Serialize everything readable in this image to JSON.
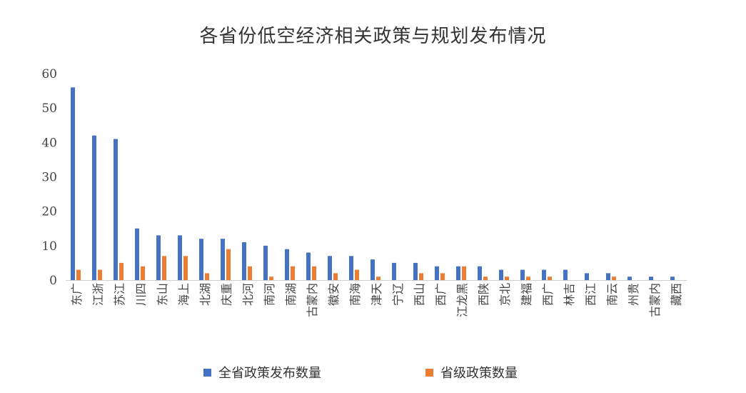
{
  "chart_data": {
    "type": "bar",
    "title": "各省份低空经济相关政策与规划发布情况",
    "xlabel": "",
    "ylabel": "",
    "ylim": [
      0,
      60
    ],
    "yticks": [
      0,
      10,
      20,
      30,
      40,
      50,
      60
    ],
    "grid": false,
    "legend_position": "bottom",
    "categories": [
      "广东",
      "浙江",
      "江苏",
      "四川",
      "山东",
      "上海",
      "湖北",
      "重庆",
      "河北",
      "河南",
      "湖南",
      "内蒙古",
      "安徽",
      "海南",
      "天津",
      "辽宁",
      "山西",
      "广西",
      "黑龙江",
      "陕西",
      "北京",
      "福建",
      "广西",
      "吉林",
      "江西",
      "云南",
      "贵州",
      "内蒙古",
      "西藏"
    ],
    "series": [
      {
        "name": "全省政策发布数量",
        "color": "#4472C4",
        "values": [
          56,
          42,
          41,
          15,
          13,
          13,
          12,
          12,
          11,
          10,
          9,
          8,
          7,
          7,
          6,
          5,
          5,
          4,
          4,
          4,
          3,
          3,
          3,
          3,
          2,
          2,
          1,
          1,
          1
        ]
      },
      {
        "name": "省级政策数量",
        "color": "#ED7D31",
        "values": [
          3,
          3,
          5,
          4,
          7,
          7,
          2,
          9,
          4,
          1,
          4,
          4,
          2,
          3,
          1,
          0,
          2,
          2,
          4,
          1,
          1,
          1,
          1,
          0,
          0,
          1,
          0,
          0,
          0
        ]
      }
    ]
  }
}
